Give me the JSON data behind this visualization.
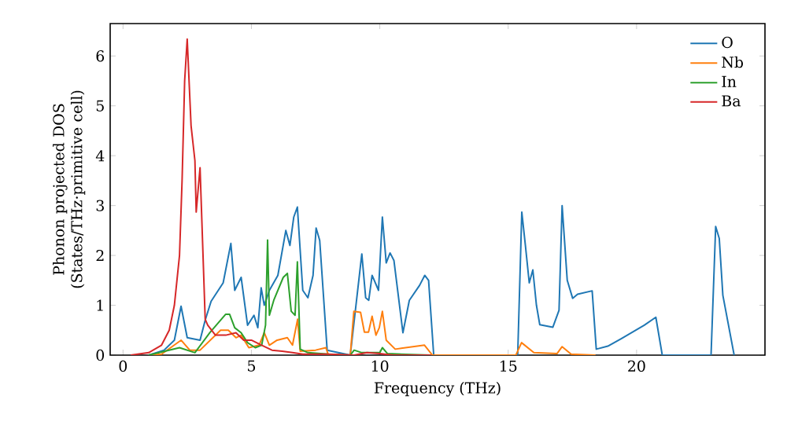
{
  "chart_data": {
    "type": "line",
    "xlabel": "Frequency (THz)",
    "ylabel": "Phonon projected DOS (States/THz·primitive cell)",
    "xlim": [
      -0.5,
      25
    ],
    "ylim": [
      0,
      6.65
    ],
    "xticks": [
      0,
      5,
      10,
      15,
      20
    ],
    "yticks": [
      0,
      1,
      2,
      3,
      4,
      5,
      6
    ],
    "grid": false,
    "legend": "top right",
    "marker": "none",
    "line_style": "solid",
    "series": [
      {
        "name": "O",
        "color": "#1f77b4",
        "x": [
          1.0,
          1.6,
          2.0,
          2.26,
          2.5,
          3.0,
          3.2,
          3.43,
          3.9,
          4.2,
          4.35,
          4.6,
          4.85,
          5.1,
          5.25,
          5.38,
          5.5,
          5.7,
          6.03,
          6.34,
          6.5,
          6.65,
          6.79,
          7.0,
          7.2,
          7.4,
          7.52,
          7.66,
          7.95,
          8.85,
          9.3,
          9.45,
          9.57,
          9.7,
          9.95,
          10.1,
          10.25,
          10.4,
          10.55,
          10.9,
          11.15,
          11.55,
          11.75,
          11.9,
          12.1,
          15.37,
          15.53,
          15.67,
          15.82,
          15.96,
          16.1,
          16.23,
          16.74,
          16.98,
          17.1,
          17.3,
          17.51,
          17.7,
          18.27,
          18.43,
          18.88,
          19.4,
          20.3,
          20.75,
          21.0,
          22.9,
          23.08,
          23.22,
          23.36,
          23.8
        ],
        "values": [
          0.0,
          0.1,
          0.3,
          0.98,
          0.35,
          0.3,
          0.7,
          1.08,
          1.45,
          2.24,
          1.3,
          1.56,
          0.6,
          0.8,
          0.55,
          1.35,
          1.0,
          1.3,
          1.6,
          2.5,
          2.2,
          2.77,
          2.97,
          1.3,
          1.15,
          1.6,
          2.55,
          2.3,
          0.1,
          0.0,
          2.03,
          1.15,
          1.1,
          1.6,
          1.3,
          2.77,
          1.85,
          2.05,
          1.9,
          0.45,
          1.1,
          1.4,
          1.6,
          1.5,
          0.0,
          0.0,
          2.87,
          2.2,
          1.45,
          1.71,
          1.0,
          0.61,
          0.56,
          0.9,
          3.0,
          1.5,
          1.14,
          1.22,
          1.29,
          0.12,
          0.18,
          0.33,
          0.6,
          0.76,
          0.0,
          0.0,
          2.58,
          2.34,
          1.2,
          0.0
        ]
      },
      {
        "name": "Nb",
        "color": "#ff7f0e",
        "x": [
          1.0,
          1.5,
          2.26,
          2.6,
          3.0,
          3.8,
          4.1,
          4.4,
          4.6,
          4.9,
          5.3,
          5.5,
          5.7,
          6.0,
          6.4,
          6.6,
          6.8,
          6.9,
          7.5,
          7.9,
          8.0,
          8.85,
          8.99,
          9.25,
          9.4,
          9.56,
          9.7,
          9.85,
          9.98,
          10.1,
          10.25,
          10.6,
          11.74,
          12.05,
          15.3,
          15.52,
          16.0,
          16.9,
          17.1,
          17.45,
          18.4
        ],
        "values": [
          0.0,
          0.02,
          0.3,
          0.1,
          0.1,
          0.5,
          0.5,
          0.35,
          0.4,
          0.15,
          0.2,
          0.45,
          0.2,
          0.3,
          0.35,
          0.2,
          0.72,
          0.08,
          0.1,
          0.15,
          0.0,
          0.0,
          0.88,
          0.86,
          0.46,
          0.46,
          0.78,
          0.4,
          0.55,
          0.88,
          0.3,
          0.12,
          0.2,
          0.0,
          0.0,
          0.25,
          0.05,
          0.03,
          0.17,
          0.02,
          0.0
        ]
      },
      {
        "name": "In",
        "color": "#2ca02c",
        "x": [
          1.0,
          2.2,
          2.8,
          3.38,
          4.0,
          4.15,
          4.35,
          4.6,
          4.85,
          5.15,
          5.4,
          5.55,
          5.63,
          5.7,
          5.87,
          6.24,
          6.4,
          6.55,
          6.7,
          6.79,
          6.9,
          7.2,
          8.0,
          8.85,
          9.0,
          9.3,
          10.0,
          10.1,
          10.3,
          12.0
        ],
        "values": [
          0.0,
          0.15,
          0.05,
          0.45,
          0.82,
          0.82,
          0.55,
          0.45,
          0.25,
          0.15,
          0.2,
          0.6,
          2.31,
          0.8,
          1.1,
          1.56,
          1.64,
          0.88,
          0.8,
          1.87,
          0.12,
          0.05,
          0.02,
          0.0,
          0.1,
          0.05,
          0.05,
          0.15,
          0.03,
          0.0
        ]
      },
      {
        "name": "Ba",
        "color": "#d62728",
        "x": [
          0.3,
          1.0,
          1.5,
          1.8,
          2.0,
          2.2,
          2.3,
          2.4,
          2.5,
          2.65,
          2.8,
          2.85,
          3.0,
          3.2,
          3.3,
          3.6,
          4.0,
          4.4,
          4.7,
          5.0,
          5.4,
          5.8,
          6.2,
          6.6,
          7.0,
          8.0,
          9.0,
          9.5,
          10.0,
          10.5,
          12.0
        ],
        "values": [
          0.0,
          0.05,
          0.2,
          0.5,
          1.0,
          2.0,
          3.5,
          5.5,
          6.34,
          4.6,
          3.9,
          2.87,
          3.76,
          0.72,
          0.6,
          0.4,
          0.4,
          0.45,
          0.3,
          0.3,
          0.2,
          0.1,
          0.08,
          0.05,
          0.02,
          0.02,
          0.0,
          0.05,
          0.03,
          0.0,
          0.0
        ]
      }
    ]
  }
}
